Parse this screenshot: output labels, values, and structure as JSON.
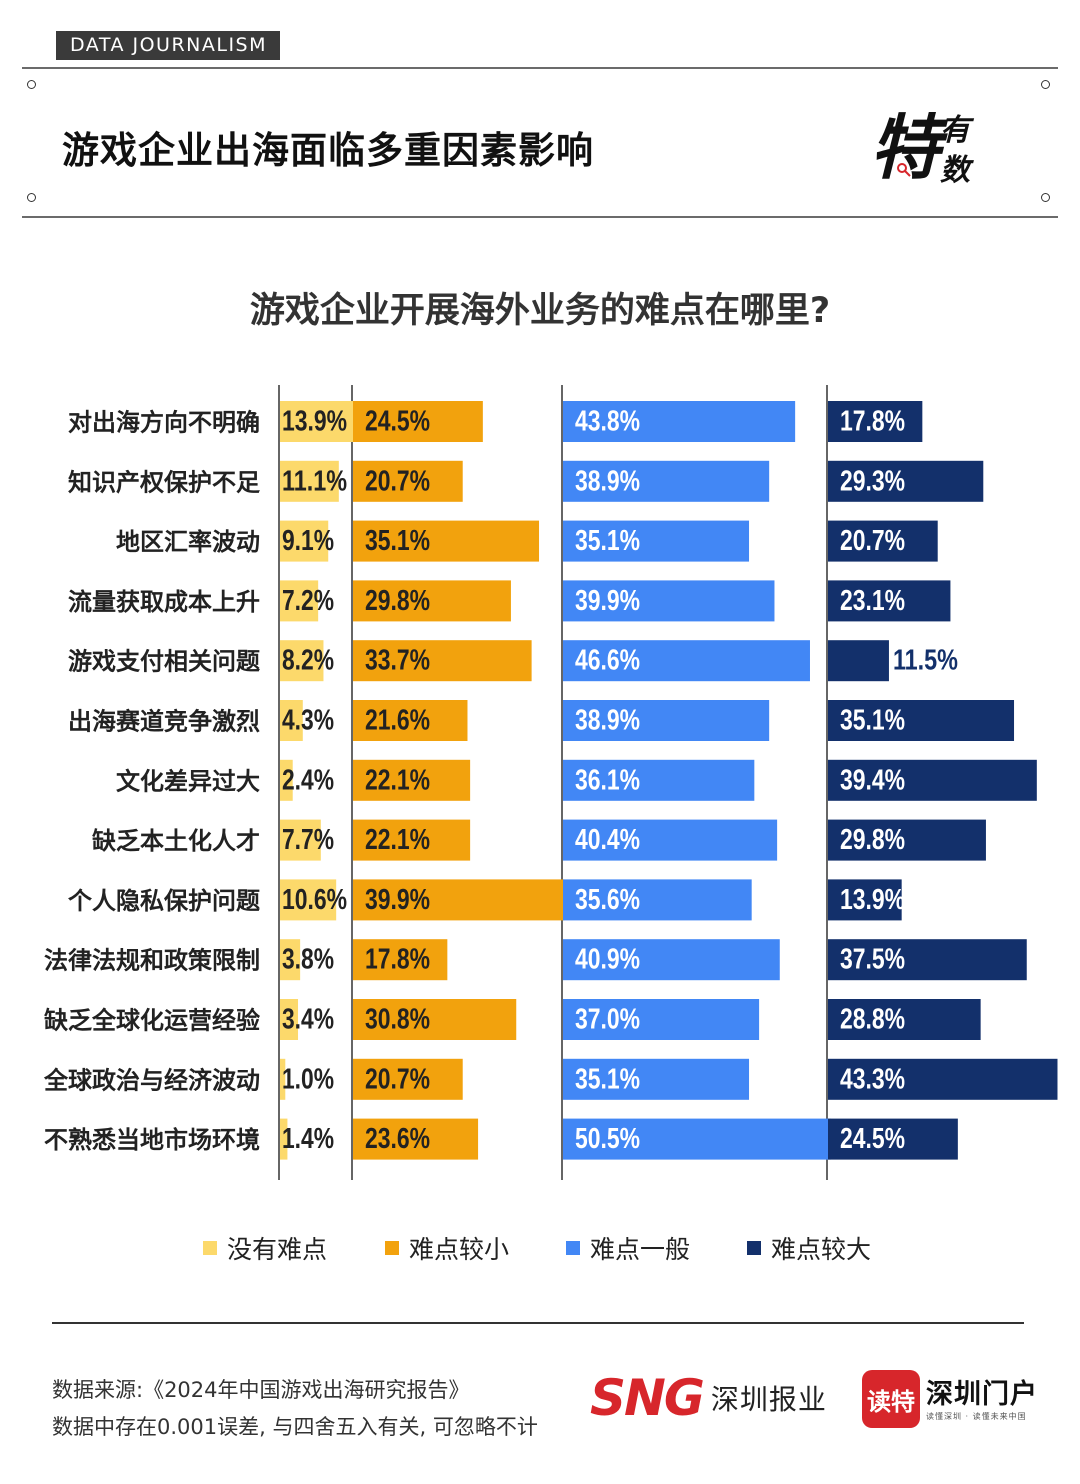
{
  "header": {
    "tag": "DATA JOURNALISM",
    "title": "游戏企业出海面临多重因素影响",
    "logo_big": "特",
    "logo_small_1": "有",
    "logo_small_2": "数"
  },
  "chart_data": {
    "type": "bar",
    "title": "游戏企业开展海外业务的难点在哪里?",
    "categories": [
      "对出海方向不明确",
      "知识产权保护不足",
      "地区汇率波动",
      "流量获取成本上升",
      "游戏支付相关问题",
      "出海赛道竞争激烈",
      "文化差异过大",
      "缺乏本土化人才",
      "个人隐私保护问题",
      "法律法规和政策限制",
      "缺乏全球化运营经验",
      "全球政治与经济波动",
      "不熟悉当地市场环境"
    ],
    "series": [
      {
        "name": "没有难点",
        "color": "#fcd96b",
        "values": [
          13.9,
          11.1,
          9.1,
          7.2,
          8.2,
          4.3,
          2.4,
          7.7,
          10.6,
          3.8,
          3.4,
          1.0,
          1.4
        ]
      },
      {
        "name": "难点较小",
        "color": "#f2a20d",
        "values": [
          24.5,
          20.7,
          35.1,
          29.8,
          33.7,
          21.6,
          22.1,
          22.1,
          39.9,
          17.8,
          30.8,
          20.7,
          23.6
        ]
      },
      {
        "name": "难点一般",
        "color": "#4287f5",
        "values": [
          43.8,
          38.9,
          35.1,
          39.9,
          46.6,
          38.9,
          36.1,
          40.4,
          35.6,
          40.9,
          37.0,
          35.1,
          50.5
        ]
      },
      {
        "name": "难点较大",
        "color": "#13306b",
        "values": [
          17.8,
          29.3,
          20.7,
          23.1,
          11.5,
          35.1,
          39.4,
          29.8,
          13.9,
          37.5,
          28.8,
          43.3,
          24.5
        ]
      }
    ],
    "value_suffix": "%",
    "legend_position": "bottom"
  },
  "footer": {
    "source": "数据来源:《2024年中国游戏出海研究报告》",
    "note": "数据中存在0.001误差, 与四舍五入有关, 可忽略不计",
    "sng_mark": "SNG",
    "sng_name": "深圳报业",
    "dute": "读特",
    "portal_name": "深圳门户",
    "portal_sub": "读懂深圳 · 读懂未来中国"
  }
}
